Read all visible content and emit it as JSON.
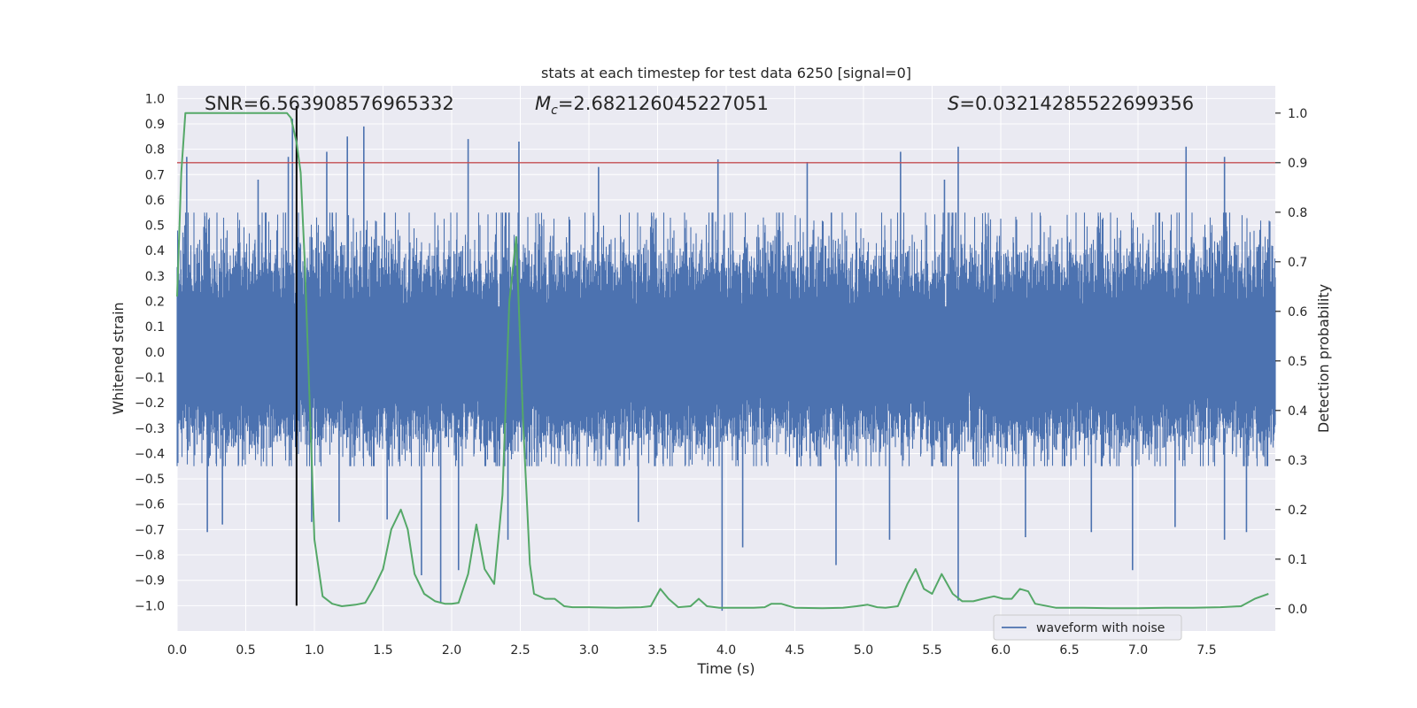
{
  "chart_data": {
    "type": "line",
    "title": "stats at each timestep for test data 6250 [signal=0]",
    "xlabel": "Time (s)",
    "ylabel_left": "Whitened strain",
    "ylabel_right": "Detection probability",
    "xlim": [
      0,
      8
    ],
    "ylim_left": [
      -1.1,
      1.05
    ],
    "ylim_right": [
      -0.045,
      1.055
    ],
    "x_ticks": [
      0.0,
      0.5,
      1.0,
      1.5,
      2.0,
      2.5,
      3.0,
      3.5,
      4.0,
      4.5,
      5.0,
      5.5,
      6.0,
      6.5,
      7.0,
      7.5
    ],
    "x_tick_labels": [
      "0.0",
      "0.5",
      "1.0",
      "1.5",
      "2.0",
      "2.5",
      "3.0",
      "3.5",
      "4.0",
      "4.5",
      "5.0",
      "5.5",
      "6.0",
      "6.5",
      "7.0",
      "7.5"
    ],
    "y_left_ticks": [
      1.0,
      0.9,
      0.8,
      0.7,
      0.6,
      0.5,
      0.4,
      0.3,
      0.2,
      0.1,
      0.0,
      -0.1,
      -0.2,
      -0.3,
      -0.4,
      -0.5,
      -0.6,
      -0.7,
      -0.8,
      -0.9,
      -1.0
    ],
    "y_left_tick_labels": [
      "1.0",
      "0.9",
      "0.8",
      "0.7",
      "0.6",
      "0.5",
      "0.4",
      "0.3",
      "0.2",
      "0.1",
      "0.0",
      "−0.1",
      "−0.2",
      "−0.3",
      "−0.4",
      "−0.5",
      "−0.6",
      "−0.7",
      "−0.8",
      "−0.9",
      "−1.0"
    ],
    "y_right_ticks": [
      1.0,
      0.9,
      0.8,
      0.7,
      0.6,
      0.5,
      0.4,
      0.3,
      0.2,
      0.1,
      0.0
    ],
    "y_right_tick_labels": [
      "1.0",
      "0.9",
      "0.8",
      "0.7",
      "0.6",
      "0.5",
      "0.4",
      "0.3",
      "0.2",
      "0.1",
      "0.0"
    ],
    "annotations": {
      "snr": "SNR=6.563908576965332",
      "mc_symbol": "M",
      "mc_subscript": "c",
      "mc_value": "=2.682126045227051",
      "s_symbol": "S",
      "s_value": "=0.03214285522699356"
    },
    "legend": {
      "label": "waveform with noise",
      "placement": "lower-right"
    },
    "grid": true,
    "series": [
      {
        "name": "waveform with noise",
        "axis": "left",
        "color": "#4c72b0",
        "style": "dense-noise",
        "envelope": {
          "typical_max": 0.55,
          "typical_min": -0.45
        },
        "spikes": [
          {
            "x": 0.07,
            "y": 0.77
          },
          {
            "x": 0.22,
            "y": -0.71
          },
          {
            "x": 0.33,
            "y": -0.68
          },
          {
            "x": 0.59,
            "y": 0.68
          },
          {
            "x": 0.81,
            "y": 0.77
          },
          {
            "x": 0.84,
            "y": 0.92
          },
          {
            "x": 0.98,
            "y": -0.67
          },
          {
            "x": 1.09,
            "y": 0.79
          },
          {
            "x": 1.18,
            "y": -0.67
          },
          {
            "x": 1.24,
            "y": 0.85
          },
          {
            "x": 1.36,
            "y": 0.89
          },
          {
            "x": 1.53,
            "y": -0.66
          },
          {
            "x": 1.78,
            "y": -0.88
          },
          {
            "x": 1.92,
            "y": -0.99
          },
          {
            "x": 2.05,
            "y": -0.86
          },
          {
            "x": 2.12,
            "y": 0.84
          },
          {
            "x": 2.49,
            "y": 0.83
          },
          {
            "x": 2.41,
            "y": -0.74
          },
          {
            "x": 3.07,
            "y": 0.73
          },
          {
            "x": 3.36,
            "y": -0.67
          },
          {
            "x": 3.94,
            "y": 0.76
          },
          {
            "x": 3.97,
            "y": -1.02
          },
          {
            "x": 4.12,
            "y": -0.77
          },
          {
            "x": 4.59,
            "y": 0.75
          },
          {
            "x": 4.8,
            "y": -0.84
          },
          {
            "x": 5.19,
            "y": -0.74
          },
          {
            "x": 5.27,
            "y": 0.79
          },
          {
            "x": 5.59,
            "y": 0.68
          },
          {
            "x": 5.69,
            "y": 0.81
          },
          {
            "x": 5.69,
            "y": -0.98
          },
          {
            "x": 6.18,
            "y": -0.73
          },
          {
            "x": 6.66,
            "y": -0.71
          },
          {
            "x": 6.96,
            "y": -0.86
          },
          {
            "x": 7.35,
            "y": 0.81
          },
          {
            "x": 7.63,
            "y": 0.77
          },
          {
            "x": 7.63,
            "y": -0.74
          },
          {
            "x": 7.27,
            "y": -0.69
          },
          {
            "x": 7.79,
            "y": -0.71
          }
        ]
      },
      {
        "name": "",
        "axis": "right",
        "color": "#55a868",
        "x": [
          0.0,
          0.03,
          0.06,
          0.1,
          0.2,
          0.4,
          0.6,
          0.7,
          0.75,
          0.8,
          0.83,
          0.87,
          0.9,
          0.93,
          0.97,
          1.0,
          1.06,
          1.13,
          1.2,
          1.3,
          1.37,
          1.43,
          1.5,
          1.56,
          1.63,
          1.68,
          1.73,
          1.8,
          1.88,
          1.95,
          2.0,
          2.05,
          2.12,
          2.18,
          2.24,
          2.31,
          2.37,
          2.42,
          2.47,
          2.52,
          2.57,
          2.6,
          2.68,
          2.75,
          2.82,
          2.88,
          3.0,
          3.2,
          3.38,
          3.45,
          3.52,
          3.58,
          3.65,
          3.74,
          3.8,
          3.86,
          3.95,
          4.2,
          4.28,
          4.33,
          4.4,
          4.5,
          4.7,
          4.85,
          4.95,
          5.03,
          5.1,
          5.16,
          5.25,
          5.32,
          5.38,
          5.44,
          5.5,
          5.57,
          5.65,
          5.72,
          5.8,
          5.87,
          5.95,
          6.02,
          6.08,
          6.14,
          6.2,
          6.25,
          6.4,
          6.6,
          6.8,
          7.0,
          7.2,
          7.4,
          7.6,
          7.75,
          7.85,
          7.95
        ],
        "y": [
          0.63,
          0.88,
          1.0,
          1.0,
          1.0,
          1.0,
          1.0,
          1.0,
          1.0,
          1.0,
          0.99,
          0.94,
          0.88,
          0.7,
          0.38,
          0.14,
          0.025,
          0.01,
          0.005,
          0.008,
          0.012,
          0.04,
          0.08,
          0.16,
          0.2,
          0.16,
          0.07,
          0.03,
          0.015,
          0.01,
          0.01,
          0.012,
          0.07,
          0.17,
          0.08,
          0.05,
          0.23,
          0.62,
          0.75,
          0.38,
          0.09,
          0.03,
          0.02,
          0.02,
          0.005,
          0.003,
          0.003,
          0.002,
          0.003,
          0.005,
          0.04,
          0.02,
          0.003,
          0.005,
          0.02,
          0.005,
          0.002,
          0.002,
          0.003,
          0.01,
          0.01,
          0.002,
          0.001,
          0.002,
          0.005,
          0.008,
          0.003,
          0.002,
          0.005,
          0.05,
          0.08,
          0.04,
          0.03,
          0.07,
          0.03,
          0.015,
          0.015,
          0.02,
          0.025,
          0.02,
          0.02,
          0.04,
          0.035,
          0.01,
          0.002,
          0.002,
          0.001,
          0.001,
          0.002,
          0.002,
          0.003,
          0.005,
          0.02,
          0.03
        ]
      },
      {
        "name": "",
        "axis": "right",
        "color": "#c44e52",
        "type": "hline",
        "y": 0.9
      },
      {
        "name": "",
        "axis": "left",
        "color": "#000000",
        "type": "vline",
        "x": 0.87,
        "y_range": [
          -1.0,
          0.97
        ]
      }
    ]
  }
}
